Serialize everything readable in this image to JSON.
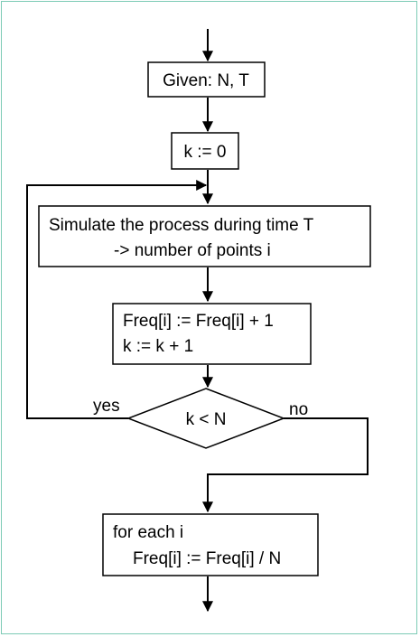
{
  "flowchart": {
    "given": "Given: N, T",
    "init": "k := 0",
    "simulate": {
      "line1": "Simulate the process during time T",
      "line2": "-> number of points i"
    },
    "update": {
      "line1": "Freq[i] := Freq[i] + 1",
      "line2": "k := k + 1"
    },
    "decision": "k < N",
    "yes_label": "yes",
    "no_label": "no",
    "final": {
      "line1": "for each i",
      "line2": "Freq[i] := Freq[i] / N"
    }
  }
}
